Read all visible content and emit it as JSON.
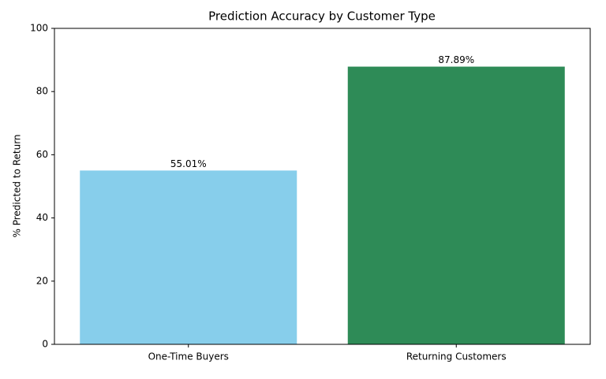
{
  "chart_data": {
    "type": "bar",
    "title": "Prediction Accuracy by Customer Type",
    "y_label": "% Predicted to Return",
    "categories": [
      "One-Time Buyers",
      "Returning Customers"
    ],
    "values": [
      55.01,
      87.89
    ],
    "value_labels": [
      "55.01%",
      "87.89%"
    ],
    "colors": [
      "#87ceeb",
      "#2e8b57"
    ],
    "ylim": [
      0,
      100
    ],
    "yticks": [
      0,
      20,
      40,
      60,
      80,
      100
    ],
    "grid": false
  }
}
